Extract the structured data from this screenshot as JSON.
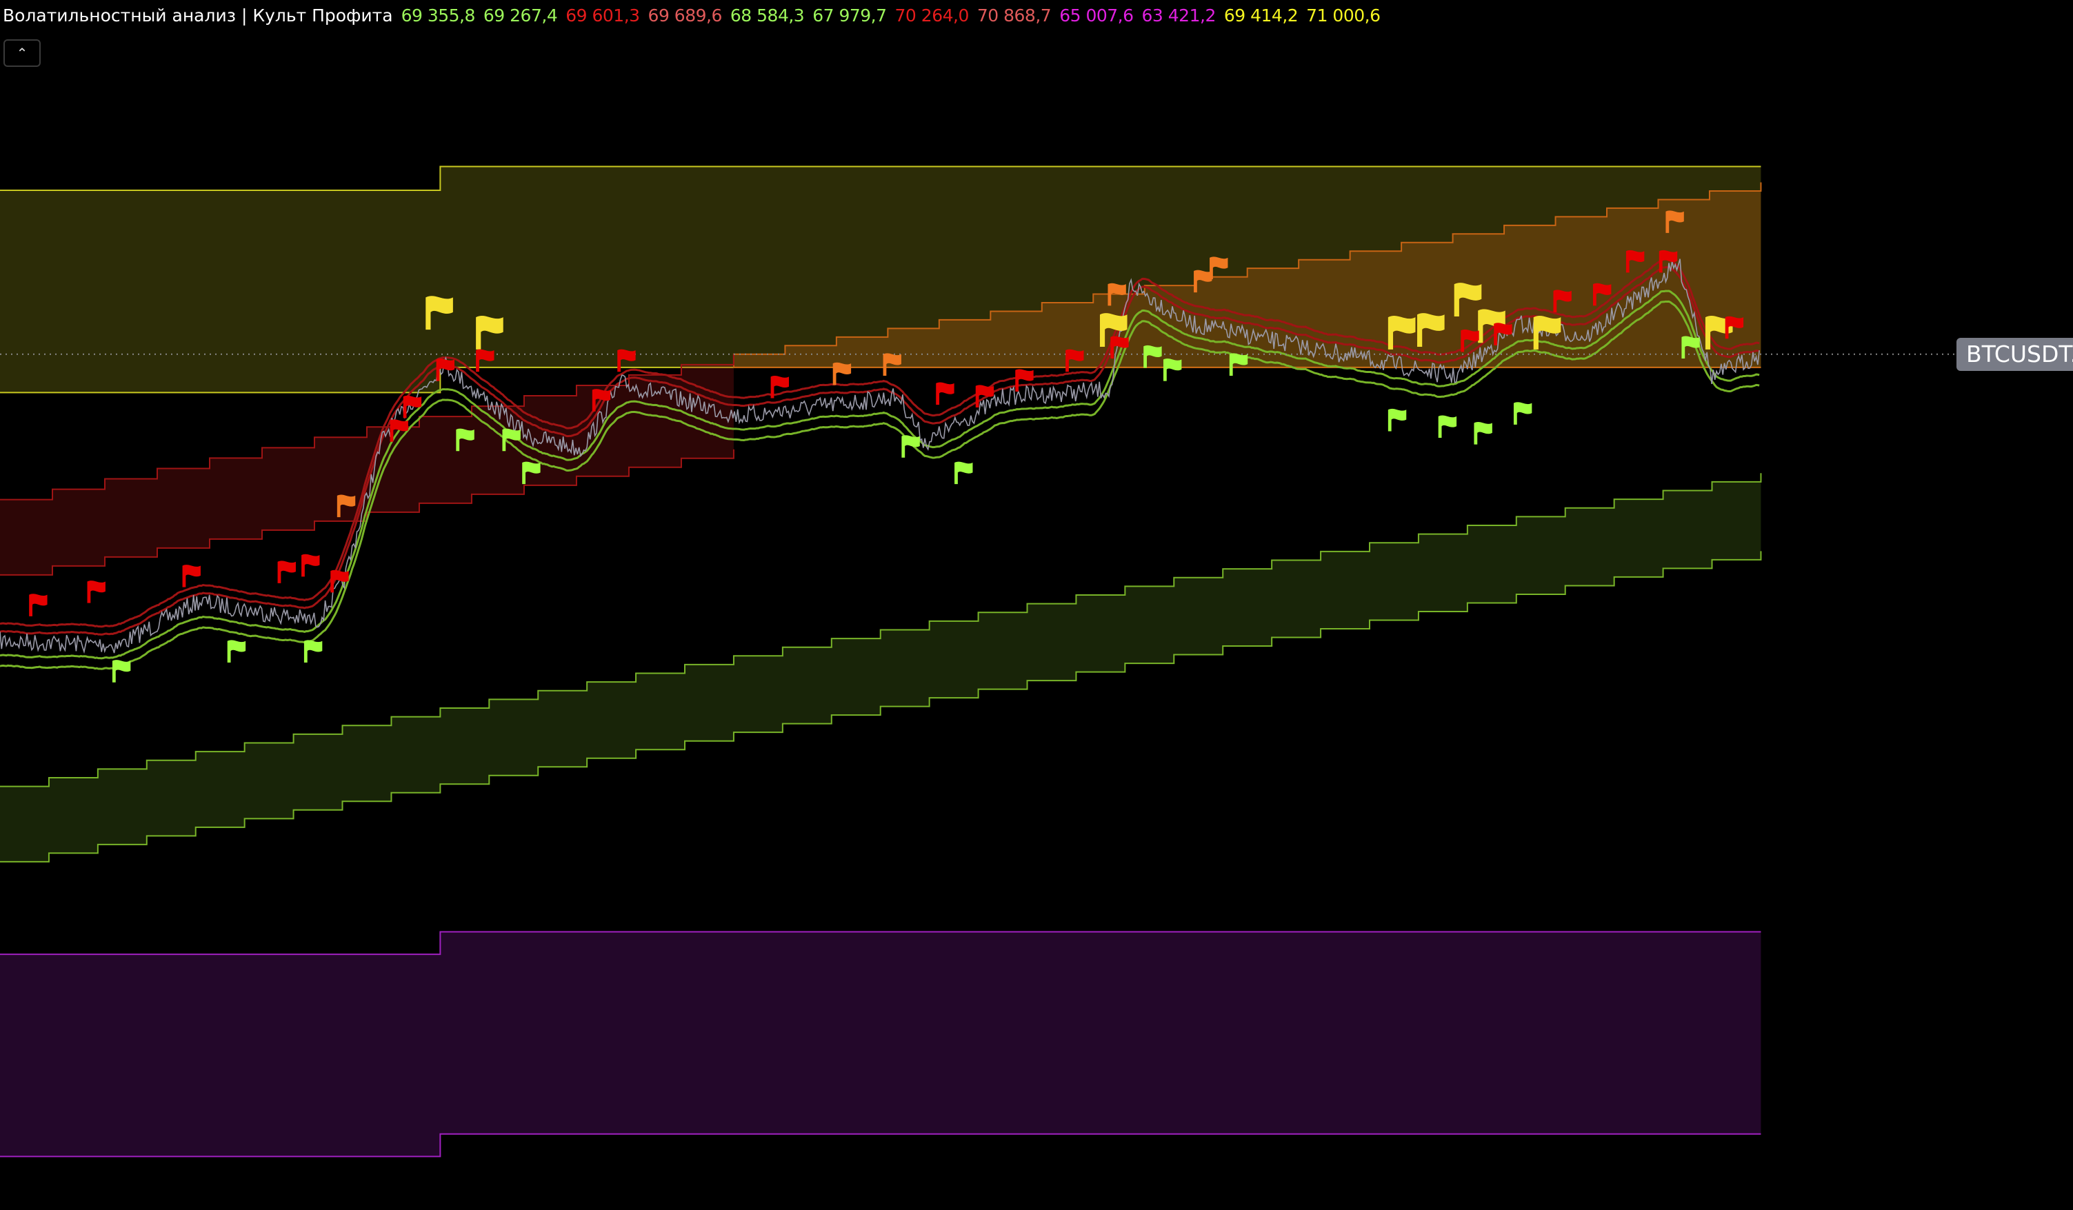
{
  "header": {
    "title": "Волатильностный анализ | Культ Профита",
    "values": [
      {
        "text": "69 355,8",
        "color": "#9cf55a"
      },
      {
        "text": "69 267,4",
        "color": "#9cf55a"
      },
      {
        "text": "69 601,3",
        "color": "#e51c1c"
      },
      {
        "text": "69 689,6",
        "color": "#e05a5a"
      },
      {
        "text": "68 584,3",
        "color": "#9cf55a"
      },
      {
        "text": "67 979,7",
        "color": "#9cf55a"
      },
      {
        "text": "70 264,0",
        "color": "#e51c1c"
      },
      {
        "text": "70 868,7",
        "color": "#e05a5a"
      },
      {
        "text": "65 007,6",
        "color": "#e020e0"
      },
      {
        "text": "63 421,2",
        "color": "#e020e0"
      },
      {
        "text": "69 414,2",
        "color": "#f5f520"
      },
      {
        "text": "71 000,6",
        "color": "#f5f520"
      }
    ],
    "collapse_icon": "chevron-up-icon"
  },
  "symbol_label": "BTCUSDT.P",
  "colors": {
    "background": "#000000",
    "price_line": "#9a9aa8",
    "yellow_band": "#c8c820",
    "orange_band": "#c86414",
    "red_band": "#a01414",
    "green_band": "#78b428",
    "purple_band": "#a020c0",
    "flag_red": "#e60000",
    "flag_orange": "#f07820",
    "flag_yellow": "#f5e030",
    "flag_green": "#a0ff40"
  }
}
